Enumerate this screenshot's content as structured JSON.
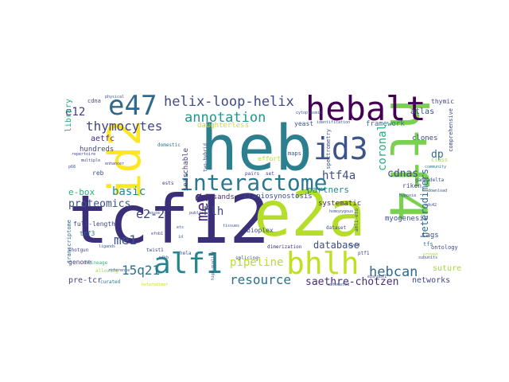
{
  "words": [
    {
      "text": "tcf12",
      "color": "#3b2f7a"
    },
    {
      "text": "e2a",
      "color": "#b5de2b"
    },
    {
      "text": "heb",
      "color": "#2c7f8e"
    },
    {
      "text": "htf4",
      "color": "#7ad151"
    },
    {
      "text": "id2",
      "color": "#fde725"
    },
    {
      "text": "hebalt",
      "color": "#440154"
    },
    {
      "text": "interactome",
      "color": "#2a788e"
    },
    {
      "text": "alf1",
      "color": "#25858e"
    },
    {
      "text": "bhlh",
      "color": "#c2df23"
    },
    {
      "text": "id3",
      "color": "#3b528b"
    },
    {
      "text": "e47",
      "color": "#31688e"
    },
    {
      "text": "helix-loop-helix",
      "color": "#3e4a89"
    },
    {
      "text": "annotation",
      "color": "#1f988b"
    },
    {
      "text": "thymocytes",
      "color": "#414487"
    },
    {
      "text": "resource",
      "color": "#2d708e"
    },
    {
      "text": "hebcan",
      "color": "#31688e"
    },
    {
      "text": "me2",
      "color": "#472c7a"
    },
    {
      "text": "me1",
      "color": "#3b528b"
    },
    {
      "text": "15q21",
      "color": "#2c728e"
    },
    {
      "text": "e2-2",
      "color": "#404387"
    },
    {
      "text": "htf4a",
      "color": "#3e4c8a"
    },
    {
      "text": "coronal",
      "color": "#29af7f"
    },
    {
      "text": "basic",
      "color": "#25848e"
    },
    {
      "text": "proteomics",
      "color": "#3b528b"
    },
    {
      "text": "saethre-chotzen",
      "color": "#472d7b"
    },
    {
      "text": "pipeline",
      "color": "#b8de29"
    },
    {
      "text": "e12",
      "color": "#443983"
    },
    {
      "text": "cdnas",
      "color": "#3f4788"
    },
    {
      "text": "heterodimers",
      "color": "#2f6b8e"
    },
    {
      "text": "database",
      "color": "#3d4e8a"
    },
    {
      "text": "hlh",
      "color": "#3f4788"
    },
    {
      "text": "partners",
      "color": "#26828e"
    },
    {
      "text": "e-box",
      "color": "#27ad81"
    },
    {
      "text": "pre-tcr",
      "color": "#414487"
    },
    {
      "text": "networks",
      "color": "#3e4989"
    },
    {
      "text": "atlas",
      "color": "#3b528b"
    },
    {
      "text": "systematic",
      "color": "#482475"
    },
    {
      "text": "thousands",
      "color": "#46307e"
    },
    {
      "text": "craniosynostosis",
      "color": "#3e4c8a"
    },
    {
      "text": "library",
      "color": "#22a785"
    },
    {
      "text": "dp",
      "color": "#31688e"
    },
    {
      "text": "searchable",
      "color": "#433e85"
    },
    {
      "text": "aetfc",
      "color": "#472c7a"
    },
    {
      "text": "sutures",
      "color": "#a5db36"
    },
    {
      "text": "myogenesis",
      "color": "#3d4d8a"
    },
    {
      "text": "clones",
      "color": "#3e4a89"
    },
    {
      "text": "yeast",
      "color": "#3b528b"
    },
    {
      "text": "framework",
      "color": "#287d8e"
    },
    {
      "text": "tags",
      "color": "#3f4889"
    },
    {
      "text": "hundreds",
      "color": "#3f4788"
    },
    {
      "text": "domestic",
      "color": "#2b758e"
    },
    {
      "text": "reb",
      "color": "#3b528b"
    },
    {
      "text": "genome",
      "color": "#443a83"
    },
    {
      "text": "full-length",
      "color": "#404688"
    },
    {
      "text": "tcf3",
      "color": "#2a788e"
    },
    {
      "text": "splicing",
      "color": "#3b528b"
    },
    {
      "text": "bioplex",
      "color": "#3e4a89"
    },
    {
      "text": "ests",
      "color": "#472f7d"
    },
    {
      "text": "dataset",
      "color": "#3f4788"
    },
    {
      "text": "pairs",
      "color": "#404588"
    },
    {
      "text": "maps",
      "color": "#3b528b"
    },
    {
      "text": "effort",
      "color": "#b8de29"
    },
    {
      "text": "daughterless",
      "color": "#cde11d"
    },
    {
      "text": "riken",
      "color": "#3e4c8a"
    },
    {
      "text": "class",
      "color": "#9dd93b"
    },
    {
      "text": "community",
      "color": "#2a788e"
    },
    {
      "text": "download",
      "color": "#3b528b"
    },
    {
      "text": "comprehensive",
      "color": "#3e4989"
    },
    {
      "text": "spectrometry",
      "color": "#3b528b"
    },
    {
      "text": "thymic",
      "color": "#3f4788"
    },
    {
      "text": "ontology",
      "color": "#3f4788"
    },
    {
      "text": "curated",
      "color": "#2a788e"
    },
    {
      "text": "transcriptome",
      "color": "#31688e"
    },
    {
      "text": "shotgun",
      "color": "#404688"
    },
    {
      "text": "lineage",
      "color": "#35b779"
    },
    {
      "text": "twist1",
      "color": "#3f4788"
    },
    {
      "text": "hela",
      "color": "#3b528b"
    },
    {
      "text": "ptf1",
      "color": "#3f4788"
    },
    {
      "text": "tfs",
      "color": "#2c728e"
    },
    {
      "text": "myod",
      "color": "#3b528b"
    },
    {
      "text": "cdna",
      "color": "#3e4a89"
    },
    {
      "text": "gammadelta",
      "color": "#3b528b"
    },
    {
      "text": "heterodimer",
      "color": "#cde11d"
    },
    {
      "text": "automated",
      "color": "#3b528b"
    },
    {
      "text": "dimerization",
      "color": "#472c7a"
    },
    {
      "text": "high-quality",
      "color": "#3e4a89"
    },
    {
      "text": "two-hybrid",
      "color": "#3f4788"
    },
    {
      "text": "aml1-eto",
      "color": "#3b528b"
    },
    {
      "text": "efnb1",
      "color": "#3e4a89"
    },
    {
      "text": "p68",
      "color": "#3b528b"
    },
    {
      "text": "allowing",
      "color": "#a5db36"
    },
    {
      "text": "nfkb",
      "color": "#3b528b"
    },
    {
      "text": "set",
      "color": "#3f4788"
    },
    {
      "text": "id",
      "color": "#31688e"
    },
    {
      "text": "physical",
      "color": "#3b528b"
    },
    {
      "text": "repertoire",
      "color": "#3f4788"
    },
    {
      "text": "mouse",
      "color": "#3b528b"
    },
    {
      "text": "public",
      "color": "#3e4a89"
    },
    {
      "text": "homozygous",
      "color": "#3b528b"
    },
    {
      "text": "tissues",
      "color": "#3e4a89"
    },
    {
      "text": "reference",
      "color": "#3b528b"
    },
    {
      "text": "identification",
      "color": "#3b528b"
    },
    {
      "text": "hypoxia",
      "color": "#3e4a89"
    },
    {
      "text": "proved",
      "color": "#a5db36"
    },
    {
      "text": "subunits",
      "color": "#3b528b"
    },
    {
      "text": "multiple",
      "color": "#3f4788"
    },
    {
      "text": "ligands",
      "color": "#3b528b"
    },
    {
      "text": "e2a-pbx1",
      "color": "#3e4a89"
    },
    {
      "text": "cytoplasmic",
      "color": "#3b528b"
    },
    {
      "text": "cdc42",
      "color": "#3f4788"
    },
    {
      "text": "ets",
      "color": "#3b528b"
    },
    {
      "text": "enhancer",
      "color": "#3e4a89"
    }
  ]
}
